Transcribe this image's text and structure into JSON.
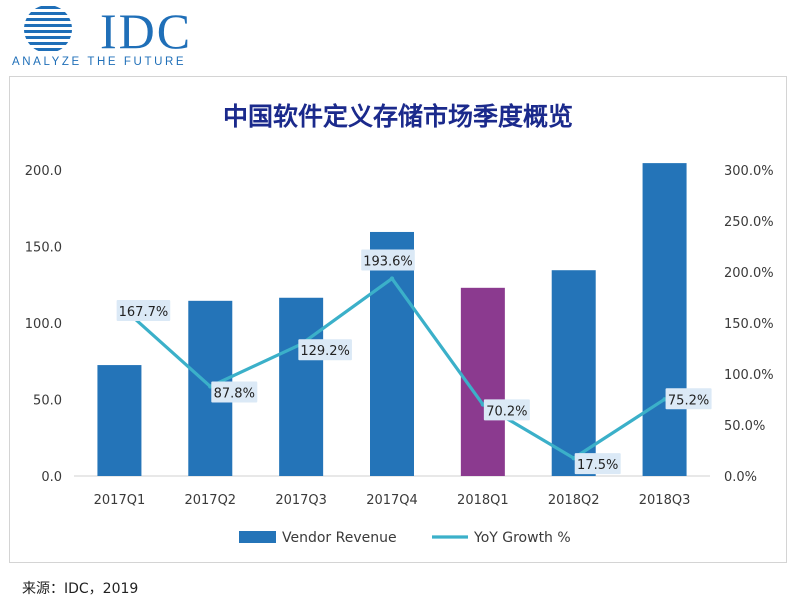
{
  "logo": {
    "brand": "IDC",
    "tagline": "ANALYZE THE FUTURE"
  },
  "source_note": "来源：IDC，2019",
  "chart_data": {
    "type": "bar",
    "title": "中国软件定义存储市场季度概览",
    "categories": [
      "2017Q1",
      "2017Q2",
      "2017Q3",
      "2017Q4",
      "2018Q1",
      "2018Q2",
      "2018Q3"
    ],
    "series": [
      {
        "name": "Vendor Revenue",
        "type": "bar",
        "axis": "left",
        "values": [
          72.5,
          114.5,
          116.5,
          159.5,
          123.0,
          134.5,
          204.5
        ],
        "color": "#2474b8",
        "highlight": {
          "index": 4,
          "color": "#8b3a8f"
        }
      },
      {
        "name": "YoY Growth %",
        "type": "line",
        "axis": "right",
        "values": [
          167.7,
          87.8,
          129.2,
          193.6,
          70.2,
          17.5,
          75.2
        ],
        "labels": [
          "167.7%",
          "87.8%",
          "129.2%",
          "193.6%",
          "70.2%",
          "17.5%",
          "75.2%"
        ],
        "color": "#3bb0c9"
      }
    ],
    "y_left": {
      "ylim": [
        0,
        200
      ],
      "ticks": [
        "0.0",
        "50.0",
        "100.0",
        "150.0",
        "200.0"
      ]
    },
    "y_right": {
      "ylim": [
        0,
        300
      ],
      "ticks": [
        "0.0%",
        "50.0%",
        "100.0%",
        "150.0%",
        "200.0%",
        "250.0%",
        "300.0%"
      ]
    },
    "grid": false,
    "legend": {
      "position": "bottom",
      "items": [
        "Vendor Revenue",
        "YoY Growth %"
      ]
    },
    "title_color": "#1b2a8c"
  }
}
